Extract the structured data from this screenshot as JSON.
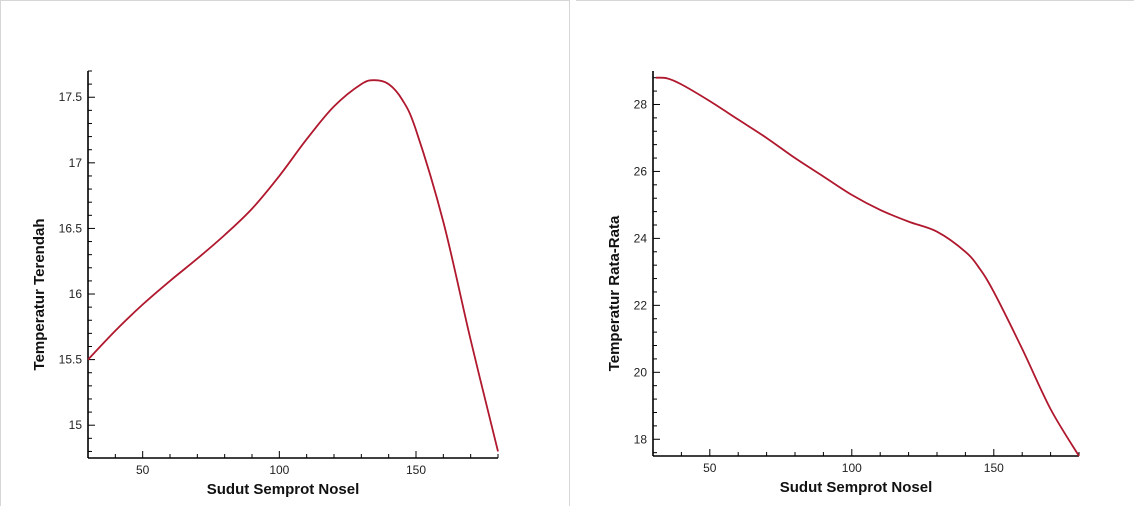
{
  "chart_data": [
    {
      "type": "line",
      "title": "",
      "xlabel": "Sudut Semprot Nosel",
      "ylabel": "Temperatur Terendah",
      "xlim": [
        30,
        180
      ],
      "ylim": [
        14.75,
        17.7
      ],
      "x_ticks": [
        50,
        100,
        150
      ],
      "x_tick_labels": [
        "50",
        "100",
        "150"
      ],
      "y_ticks": [
        15,
        15.5,
        16,
        16.5,
        17,
        17.5
      ],
      "y_tick_labels": [
        "15",
        "15.5",
        "16",
        "16.5",
        "17",
        "17.5"
      ],
      "grid": false,
      "color": "#b0182e",
      "series": [
        {
          "x": [
            30,
            40,
            50,
            60,
            70,
            80,
            90,
            100,
            110,
            120,
            130,
            135,
            140,
            145,
            150,
            160,
            170,
            180
          ],
          "y": [
            15.5,
            15.72,
            15.92,
            16.1,
            16.27,
            16.45,
            16.65,
            16.9,
            17.18,
            17.43,
            17.6,
            17.63,
            17.6,
            17.48,
            17.25,
            16.55,
            15.65,
            14.8
          ]
        }
      ]
    },
    {
      "type": "line",
      "title": "",
      "xlabel": "Sudut Semprot Nosel",
      "ylabel": "Temperatur Rata-Rata",
      "xlim": [
        30,
        180
      ],
      "ylim": [
        17.5,
        29
      ],
      "x_ticks": [
        50,
        100,
        150
      ],
      "x_tick_labels": [
        "50",
        "100",
        "150"
      ],
      "y_ticks": [
        18,
        20,
        22,
        24,
        26,
        28
      ],
      "y_tick_labels": [
        "18",
        "20",
        "22",
        "24",
        "26",
        "28"
      ],
      "grid": false,
      "color": "#b0182e",
      "series": [
        {
          "x": [
            31,
            35,
            40,
            50,
            60,
            70,
            80,
            90,
            100,
            110,
            120,
            130,
            140,
            145,
            150,
            160,
            170,
            180
          ],
          "y": [
            28.8,
            28.78,
            28.6,
            28.1,
            27.55,
            27,
            26.4,
            25.85,
            25.3,
            24.85,
            24.5,
            24.2,
            23.6,
            23.1,
            22.4,
            20.7,
            18.9,
            17.5
          ]
        }
      ]
    }
  ]
}
